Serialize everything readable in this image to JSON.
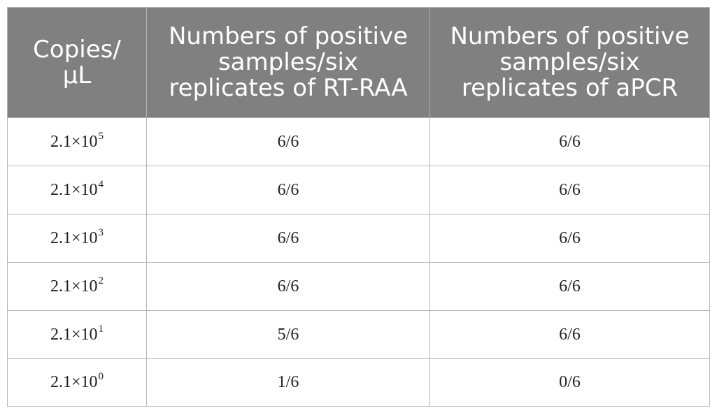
{
  "table": {
    "headers": [
      [
        "Copies/",
        "μL"
      ],
      [
        "Numbers of positive",
        "samples/six",
        "replicates of RT-RAA"
      ],
      [
        "Numbers of positive",
        "samples/six",
        "replicates of aPCR"
      ]
    ],
    "rows": [
      {
        "base": "2.1×10",
        "exp": "5",
        "rtraa": "6/6",
        "apcr": "6/6"
      },
      {
        "base": "2.1×10",
        "exp": "4",
        "rtraa": "6/6",
        "apcr": "6/6"
      },
      {
        "base": "2.1×10",
        "exp": "3",
        "rtraa": "6/6",
        "apcr": "6/6"
      },
      {
        "base": "2.1×10",
        "exp": "2",
        "rtraa": "6/6",
        "apcr": "6/6"
      },
      {
        "base": "2.1×10",
        "exp": "1",
        "rtraa": "5/6",
        "apcr": "6/6"
      },
      {
        "base": "2.1×10",
        "exp": "0",
        "rtraa": "1/6",
        "apcr": "0/6"
      }
    ]
  }
}
